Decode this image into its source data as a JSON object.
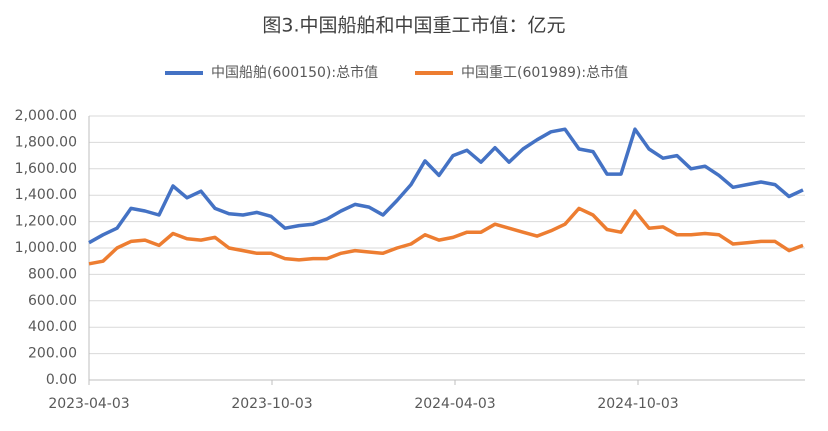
{
  "chart_data": {
    "type": "line",
    "title": "图3.中国船舶和中国重工市值：亿元",
    "x": [
      "2023-04-03",
      "2023-04-17",
      "2023-05-01",
      "2023-05-15",
      "2023-05-29",
      "2023-06-12",
      "2023-06-26",
      "2023-07-10",
      "2023-07-24",
      "2023-08-07",
      "2023-08-21",
      "2023-09-04",
      "2023-09-18",
      "2023-10-02",
      "2023-10-16",
      "2023-10-30",
      "2023-11-13",
      "2023-11-27",
      "2023-12-11",
      "2023-12-25",
      "2024-01-08",
      "2024-01-22",
      "2024-02-05",
      "2024-02-19",
      "2024-03-04",
      "2024-03-18",
      "2024-04-01",
      "2024-04-15",
      "2024-04-29",
      "2024-05-13",
      "2024-05-27",
      "2024-06-10",
      "2024-06-24",
      "2024-07-08",
      "2024-07-22",
      "2024-08-05",
      "2024-08-19",
      "2024-09-02",
      "2024-09-16",
      "2024-09-30",
      "2024-10-14",
      "2024-10-28",
      "2024-11-11",
      "2024-11-25",
      "2024-12-09",
      "2024-12-23",
      "2025-01-06",
      "2025-01-20",
      "2025-02-03",
      "2025-02-17",
      "2025-03-03",
      "2025-03-17"
    ],
    "series": [
      {
        "name": "中国船舶(600150):总市值",
        "color": "#4472c4",
        "values": [
          1040,
          1100,
          1150,
          1300,
          1280,
          1250,
          1470,
          1380,
          1430,
          1300,
          1260,
          1250,
          1270,
          1240,
          1150,
          1170,
          1180,
          1220,
          1280,
          1330,
          1310,
          1250,
          1360,
          1480,
          1660,
          1550,
          1700,
          1740,
          1650,
          1760,
          1650,
          1750,
          1820,
          1880,
          1900,
          1750,
          1730,
          1560,
          1560,
          1900,
          1750,
          1680,
          1700,
          1600,
          1620,
          1550,
          1460,
          1480,
          1500,
          1480,
          1390,
          1440
        ]
      },
      {
        "name": "中国重工(601989):总市值",
        "color": "#ed7d31",
        "values": [
          880,
          900,
          1000,
          1050,
          1060,
          1020,
          1110,
          1070,
          1060,
          1080,
          1000,
          980,
          960,
          960,
          920,
          910,
          920,
          920,
          960,
          980,
          970,
          960,
          1000,
          1030,
          1100,
          1060,
          1080,
          1120,
          1120,
          1180,
          1150,
          1120,
          1090,
          1130,
          1180,
          1300,
          1250,
          1140,
          1120,
          1280,
          1150,
          1160,
          1100,
          1100,
          1110,
          1100,
          1030,
          1040,
          1050,
          1050,
          980,
          1020
        ]
      }
    ],
    "xlim": [
      "2023-04-03",
      "2025-03-19"
    ],
    "xticks": [
      "2023-04-03",
      "2023-10-03",
      "2024-04-03",
      "2024-10-03"
    ],
    "ylim": [
      0,
      2000
    ],
    "yticks": [
      {
        "value": 0,
        "label": "0.00"
      },
      {
        "value": 200,
        "label": "200.00"
      },
      {
        "value": 400,
        "label": "400.00"
      },
      {
        "value": 600,
        "label": "600.00"
      },
      {
        "value": 800,
        "label": "800.00"
      },
      {
        "value": 1000,
        "label": "1,000.00"
      },
      {
        "value": 1200,
        "label": "1,200.00"
      },
      {
        "value": 1400,
        "label": "1,400.00"
      },
      {
        "value": 1600,
        "label": "1,600.00"
      },
      {
        "value": 1800,
        "label": "1,800.00"
      },
      {
        "value": 2000,
        "label": "2,000.00"
      }
    ],
    "grid": true,
    "legend": "top"
  }
}
